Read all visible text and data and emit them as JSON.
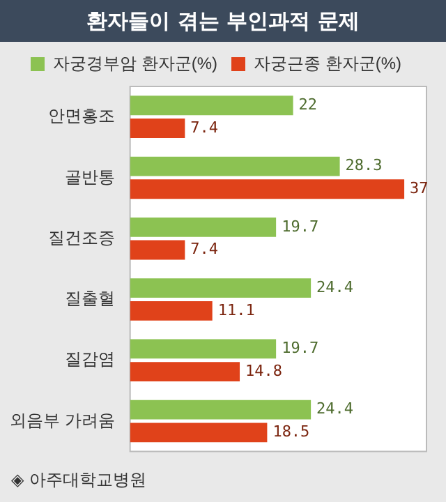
{
  "chart_data": {
    "type": "bar",
    "orientation": "horizontal",
    "title": "환자들이 겪는 부인과적 문제",
    "categories": [
      "안면홍조",
      "골반통",
      "질건조증",
      "질출혈",
      "질감염",
      "외음부 가려움"
    ],
    "series": [
      {
        "name": "자궁경부암 환자군(%)",
        "color": "#8cc252",
        "values": [
          22,
          28.3,
          19.7,
          24.4,
          19.7,
          24.4
        ]
      },
      {
        "name": "자궁근종 환자군(%)",
        "color": "#e0421a",
        "values": [
          7.4,
          37,
          7.4,
          11.1,
          14.8,
          18.5
        ]
      }
    ],
    "data_labels": true,
    "legend": "top",
    "annotations": [
      "◈ 아주대학교병원"
    ]
  }
}
